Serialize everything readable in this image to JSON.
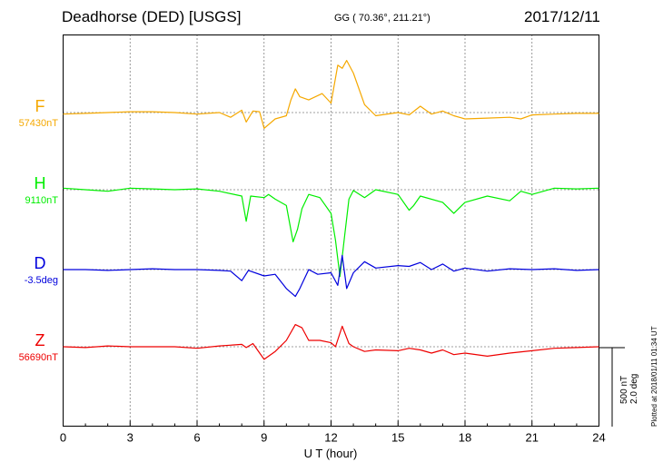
{
  "header": {
    "station": "Deadhorse (DED)  [USGS]",
    "coordinates": "GG ( 70.36°, 211.21°)",
    "date": "2017/12/11"
  },
  "footer": {
    "plotted": "Plotted at 2018/01/11 01:34 UT",
    "scale_nt": "500 nT",
    "scale_deg": "2.0 deg"
  },
  "chart_data": {
    "type": "line",
    "xlabel": "U T (hour)",
    "x_ticks": [
      "0",
      "3",
      "6",
      "9",
      "12",
      "15",
      "18",
      "21",
      "24"
    ],
    "xlim": [
      0,
      24
    ],
    "grid": "dotted",
    "series": [
      {
        "name": "F",
        "baseline_label": "57430nT",
        "color": "#f5a800",
        "points": [
          [
            0,
            -10
          ],
          [
            1,
            -5
          ],
          [
            2,
            0
          ],
          [
            3,
            5
          ],
          [
            4,
            5
          ],
          [
            5,
            0
          ],
          [
            6,
            -10
          ],
          [
            7,
            0
          ],
          [
            7.5,
            -30
          ],
          [
            8,
            15
          ],
          [
            8.2,
            -60
          ],
          [
            8.5,
            10
          ],
          [
            8.8,
            5
          ],
          [
            9,
            -100
          ],
          [
            9.5,
            -40
          ],
          [
            10,
            -20
          ],
          [
            10.2,
            80
          ],
          [
            10.4,
            150
          ],
          [
            10.6,
            100
          ],
          [
            11,
            80
          ],
          [
            11.6,
            120
          ],
          [
            12,
            60
          ],
          [
            12.3,
            300
          ],
          [
            12.5,
            280
          ],
          [
            12.7,
            330
          ],
          [
            13,
            250
          ],
          [
            13.5,
            50
          ],
          [
            14,
            -20
          ],
          [
            15,
            0
          ],
          [
            15.5,
            -15
          ],
          [
            16,
            40
          ],
          [
            16.5,
            -10
          ],
          [
            17,
            10
          ],
          [
            17.5,
            -20
          ],
          [
            18,
            -40
          ],
          [
            19,
            -35
          ],
          [
            20,
            -30
          ],
          [
            20.5,
            -40
          ],
          [
            21,
            -15
          ],
          [
            22,
            -10
          ],
          [
            23,
            -5
          ],
          [
            24,
            -5
          ]
        ]
      },
      {
        "name": "H",
        "baseline_label": "9110nT",
        "color": "#00ee00",
        "points": [
          [
            0,
            10
          ],
          [
            1,
            0
          ],
          [
            2,
            -10
          ],
          [
            3,
            10
          ],
          [
            4,
            5
          ],
          [
            5,
            0
          ],
          [
            6,
            5
          ],
          [
            7,
            -10
          ],
          [
            8,
            -40
          ],
          [
            8.2,
            -200
          ],
          [
            8.4,
            -40
          ],
          [
            9,
            -50
          ],
          [
            9.2,
            -30
          ],
          [
            9.5,
            -60
          ],
          [
            10,
            -100
          ],
          [
            10.3,
            -330
          ],
          [
            10.5,
            -250
          ],
          [
            10.7,
            -120
          ],
          [
            11,
            -30
          ],
          [
            11.5,
            -50
          ],
          [
            12,
            -150
          ],
          [
            12.2,
            -320
          ],
          [
            12.4,
            -550
          ],
          [
            12.6,
            -300
          ],
          [
            12.8,
            -60
          ],
          [
            13,
            -5
          ],
          [
            13.5,
            -50
          ],
          [
            14,
            0
          ],
          [
            15,
            -30
          ],
          [
            15.5,
            -130
          ],
          [
            15.7,
            -100
          ],
          [
            16,
            -40
          ],
          [
            17,
            -80
          ],
          [
            17.5,
            -150
          ],
          [
            18,
            -80
          ],
          [
            19,
            -40
          ],
          [
            20,
            -70
          ],
          [
            20.5,
            -10
          ],
          [
            21,
            -30
          ],
          [
            22,
            10
          ],
          [
            23,
            5
          ],
          [
            24,
            10
          ]
        ]
      },
      {
        "name": "D",
        "baseline_label": "-3.5deg",
        "color": "#0000dd",
        "points": [
          [
            0,
            0
          ],
          [
            1,
            0
          ],
          [
            2,
            -5
          ],
          [
            3,
            0
          ],
          [
            4,
            5
          ],
          [
            5,
            0
          ],
          [
            6,
            0
          ],
          [
            7,
            -5
          ],
          [
            7.5,
            -10
          ],
          [
            8,
            -70
          ],
          [
            8.3,
            -5
          ],
          [
            9,
            -40
          ],
          [
            9.5,
            -30
          ],
          [
            10,
            -120
          ],
          [
            10.4,
            -170
          ],
          [
            10.6,
            -120
          ],
          [
            11,
            0
          ],
          [
            11.4,
            -30
          ],
          [
            12,
            -20
          ],
          [
            12.3,
            -100
          ],
          [
            12.5,
            90
          ],
          [
            12.7,
            -120
          ],
          [
            13,
            -20
          ],
          [
            13.5,
            50
          ],
          [
            14,
            10
          ],
          [
            15,
            25
          ],
          [
            15.5,
            20
          ],
          [
            16,
            45
          ],
          [
            16.5,
            0
          ],
          [
            17,
            35
          ],
          [
            17.5,
            -10
          ],
          [
            18,
            10
          ],
          [
            19,
            -10
          ],
          [
            20,
            5
          ],
          [
            21,
            0
          ],
          [
            22,
            5
          ],
          [
            23,
            -5
          ],
          [
            24,
            0
          ]
        ]
      },
      {
        "name": "Z",
        "baseline_label": "56690nT",
        "color": "#ee0000",
        "points": [
          [
            0,
            0
          ],
          [
            1,
            -5
          ],
          [
            2,
            5
          ],
          [
            3,
            0
          ],
          [
            4,
            0
          ],
          [
            5,
            0
          ],
          [
            6,
            -10
          ],
          [
            7,
            5
          ],
          [
            8,
            15
          ],
          [
            8.2,
            -5
          ],
          [
            8.5,
            20
          ],
          [
            9,
            -80
          ],
          [
            9.5,
            -30
          ],
          [
            10,
            40
          ],
          [
            10.4,
            140
          ],
          [
            10.7,
            120
          ],
          [
            11,
            40
          ],
          [
            11.5,
            40
          ],
          [
            12,
            25
          ],
          [
            12.2,
            0
          ],
          [
            12.5,
            130
          ],
          [
            12.8,
            20
          ],
          [
            13,
            0
          ],
          [
            13.5,
            -30
          ],
          [
            14,
            -20
          ],
          [
            15,
            -25
          ],
          [
            15.5,
            -10
          ],
          [
            16,
            -20
          ],
          [
            16.5,
            -40
          ],
          [
            17,
            -20
          ],
          [
            17.5,
            -50
          ],
          [
            18,
            -40
          ],
          [
            19,
            -60
          ],
          [
            20,
            -40
          ],
          [
            21,
            -25
          ],
          [
            22,
            -10
          ],
          [
            23,
            -5
          ],
          [
            24,
            0
          ]
        ]
      }
    ]
  }
}
